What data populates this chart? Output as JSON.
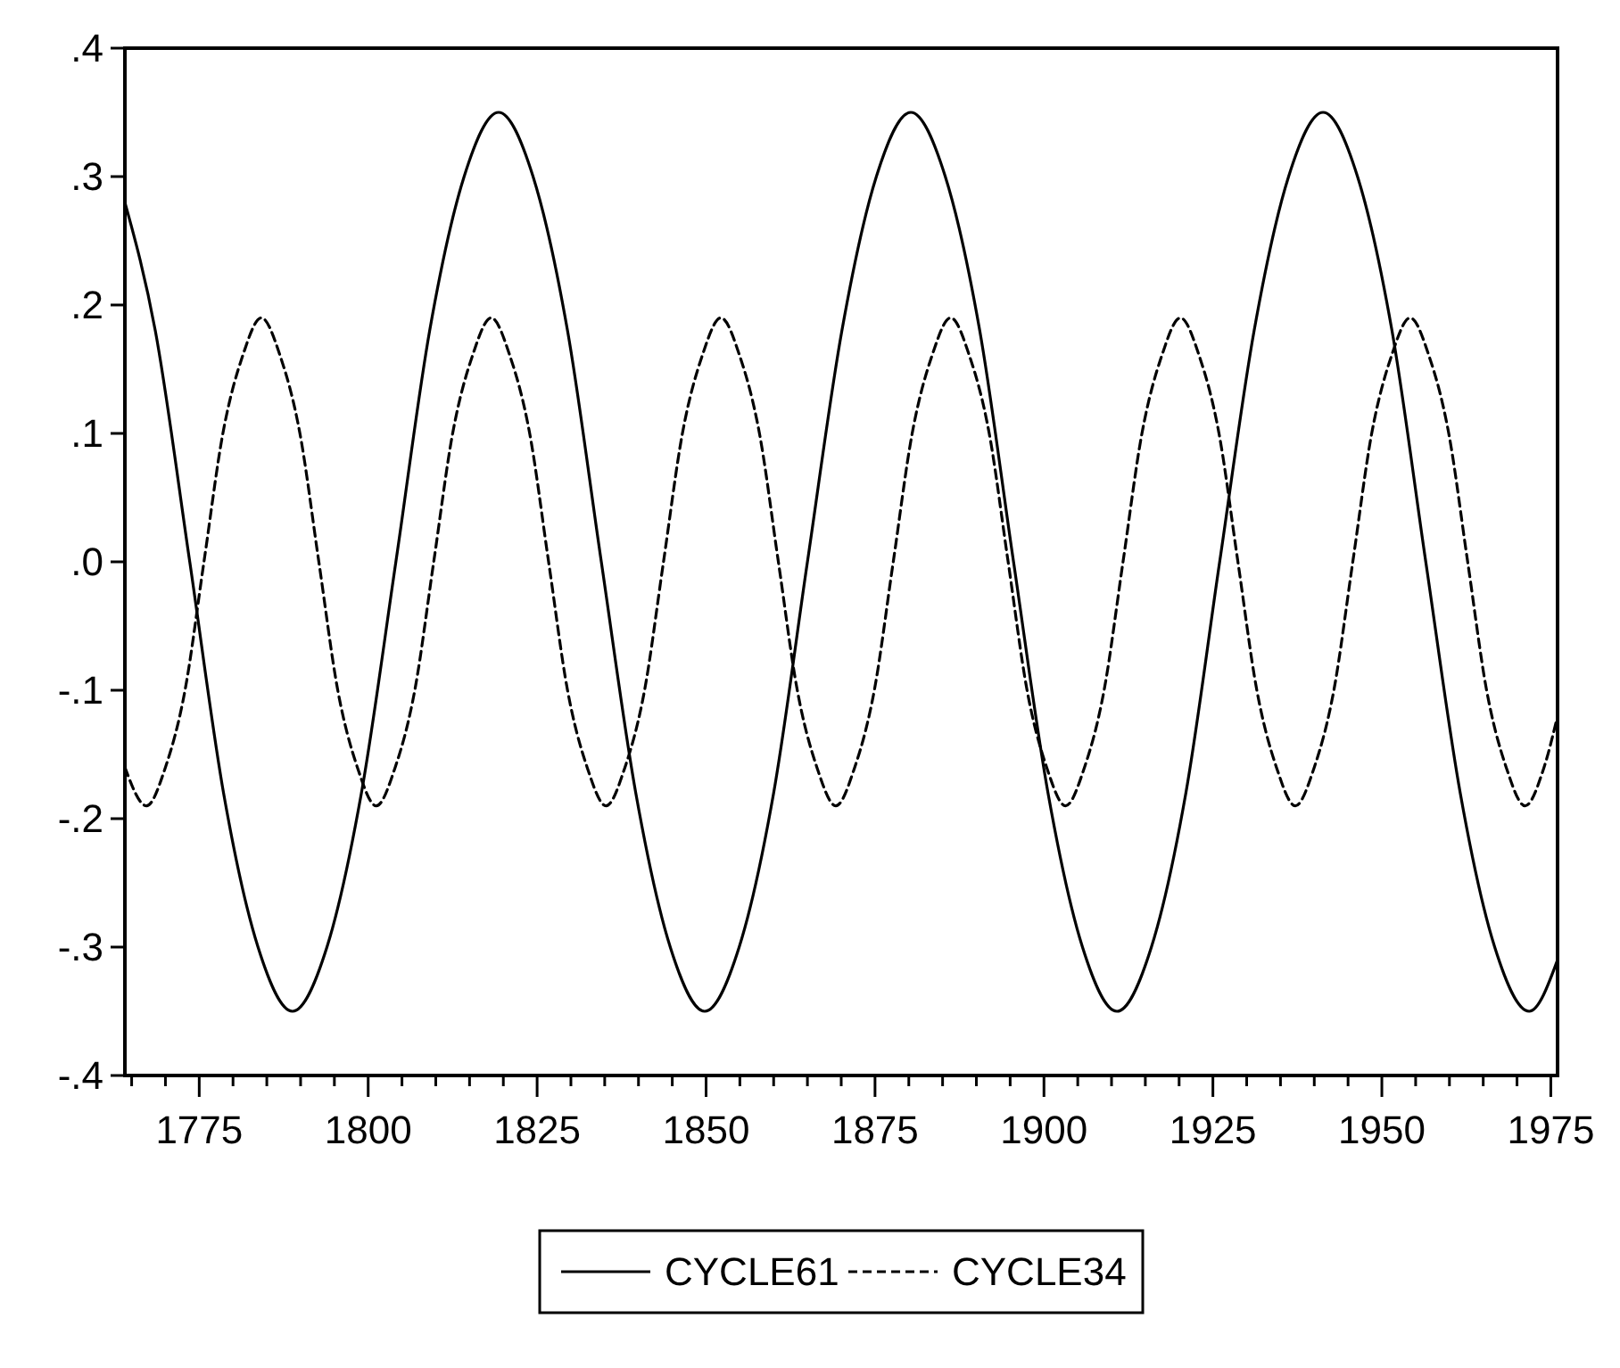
{
  "chart_data": {
    "type": "line",
    "xlim": [
      1764,
      1976
    ],
    "ylim": [
      -0.4,
      0.4
    ],
    "xticks": [
      {
        "value": 1765,
        "label": null
      },
      {
        "value": 1770,
        "label": null
      },
      1775,
      {
        "value": 1780,
        "label": null
      },
      {
        "value": 1785,
        "label": null
      },
      {
        "value": 1790,
        "label": null
      },
      {
        "value": 1795,
        "label": null
      },
      1800,
      {
        "value": 1805,
        "label": null
      },
      {
        "value": 1810,
        "label": null
      },
      {
        "value": 1815,
        "label": null
      },
      {
        "value": 1820,
        "label": null
      },
      1825,
      {
        "value": 1830,
        "label": null
      },
      {
        "value": 1835,
        "label": null
      },
      {
        "value": 1840,
        "label": null
      },
      {
        "value": 1845,
        "label": null
      },
      1850,
      {
        "value": 1855,
        "label": null
      },
      {
        "value": 1860,
        "label": null
      },
      {
        "value": 1865,
        "label": null
      },
      {
        "value": 1870,
        "label": null
      },
      1875,
      {
        "value": 1880,
        "label": null
      },
      {
        "value": 1885,
        "label": null
      },
      {
        "value": 1890,
        "label": null
      },
      {
        "value": 1895,
        "label": null
      },
      1900,
      {
        "value": 1905,
        "label": null
      },
      {
        "value": 1910,
        "label": null
      },
      {
        "value": 1915,
        "label": null
      },
      {
        "value": 1920,
        "label": null
      },
      1925,
      {
        "value": 1930,
        "label": null
      },
      {
        "value": 1935,
        "label": null
      },
      {
        "value": 1940,
        "label": null
      },
      {
        "value": 1945,
        "label": null
      },
      1950,
      {
        "value": 1955,
        "label": null
      },
      {
        "value": 1960,
        "label": null
      },
      {
        "value": 1965,
        "label": null
      },
      {
        "value": 1970,
        "label": null
      },
      1975
    ],
    "yticks": [
      {
        "value": -0.4,
        "label": "-.4"
      },
      {
        "value": -0.3,
        "label": "-.3"
      },
      {
        "value": -0.2,
        "label": "-.2"
      },
      {
        "value": -0.1,
        "label": "-.1"
      },
      {
        "value": 0,
        "label": ".0"
      },
      {
        "value": 0.1,
        "label": ".1"
      },
      {
        "value": 0.2,
        "label": ".2"
      },
      {
        "value": 0.3,
        "label": ".3"
      },
      {
        "value": 0.4,
        "label": ".4"
      }
    ],
    "legend": "bottom",
    "grid": false,
    "marker": "none",
    "series": [
      {
        "name": "CYCLE61",
        "color": "#000000",
        "line_style": "solid",
        "x": [
          1764,
          1768.5,
          1773.6,
          1778.6,
          1783.7,
          1788.8,
          1793.9,
          1799.0,
          1804.1,
          1809.1,
          1814.2,
          1819.3,
          1824.4,
          1829.5,
          1834.5,
          1839.6,
          1844.7,
          1849.8,
          1854.9,
          1860.0,
          1865.0,
          1870.1,
          1875.2,
          1880.3,
          1885.4,
          1890.5,
          1895.5,
          1900.6,
          1905.7,
          1910.8,
          1915.9,
          1921.0,
          1926.0,
          1931.1,
          1936.2,
          1941.3,
          1946.4,
          1951.5,
          1956.5,
          1961.6,
          1966.7,
          1971.8,
          1976
        ],
        "values": [
          0.28,
          0.18,
          0,
          -0.18,
          -0.3,
          -0.35,
          -0.3,
          -0.18,
          0,
          0.18,
          0.3,
          0.35,
          0.3,
          0.18,
          0,
          -0.18,
          -0.3,
          -0.35,
          -0.3,
          -0.18,
          0,
          0.18,
          0.3,
          0.35,
          0.3,
          0.18,
          0,
          -0.18,
          -0.3,
          -0.35,
          -0.3,
          -0.18,
          0,
          0.18,
          0.3,
          0.35,
          0.3,
          0.18,
          0,
          -0.18,
          -0.3,
          -0.35,
          -0.31
        ]
      },
      {
        "name": "CYCLE34",
        "color": "#000000",
        "line_style": "dashed",
        "x": [
          1764,
          1767.2,
          1770.0,
          1772.9,
          1775.7,
          1778.5,
          1781.4,
          1784.2,
          1787.0,
          1789.9,
          1792.7,
          1795.5,
          1798.4,
          1801.2,
          1804.0,
          1806.9,
          1809.7,
          1812.5,
          1815.4,
          1818.2,
          1821.0,
          1823.9,
          1826.7,
          1829.5,
          1832.4,
          1835.2,
          1838.0,
          1840.9,
          1843.7,
          1846.5,
          1849.4,
          1852.2,
          1855.0,
          1857.9,
          1860.7,
          1863.5,
          1866.4,
          1869.2,
          1872.0,
          1874.9,
          1877.7,
          1880.5,
          1883.4,
          1886.2,
          1889.0,
          1891.9,
          1894.7,
          1897.5,
          1900.4,
          1903.2,
          1906.0,
          1908.9,
          1911.7,
          1914.5,
          1917.4,
          1920.2,
          1923.0,
          1925.9,
          1928.7,
          1931.5,
          1934.4,
          1937.2,
          1940.0,
          1942.9,
          1945.7,
          1948.5,
          1951.4,
          1954.2,
          1957.0,
          1959.9,
          1962.7,
          1965.5,
          1968.4,
          1971.2,
          1974.0,
          1976
        ],
        "values": [
          -0.16,
          -0.19,
          -0.16,
          -0.1,
          0,
          0.1,
          0.16,
          0.19,
          0.16,
          0.1,
          0,
          -0.1,
          -0.16,
          -0.19,
          -0.16,
          -0.1,
          0,
          0.1,
          0.16,
          0.19,
          0.16,
          0.1,
          0,
          -0.1,
          -0.16,
          -0.19,
          -0.16,
          -0.1,
          0,
          0.1,
          0.16,
          0.19,
          0.16,
          0.1,
          0,
          -0.1,
          -0.16,
          -0.19,
          -0.16,
          -0.1,
          0,
          0.1,
          0.16,
          0.19,
          0.16,
          0.1,
          0,
          -0.1,
          -0.16,
          -0.19,
          -0.16,
          -0.1,
          0,
          0.1,
          0.16,
          0.19,
          0.16,
          0.1,
          0,
          -0.1,
          -0.16,
          -0.19,
          -0.16,
          -0.1,
          0,
          0.1,
          0.16,
          0.19,
          0.16,
          0.1,
          0,
          -0.1,
          -0.16,
          -0.19,
          -0.16,
          -0.12
        ]
      }
    ]
  }
}
